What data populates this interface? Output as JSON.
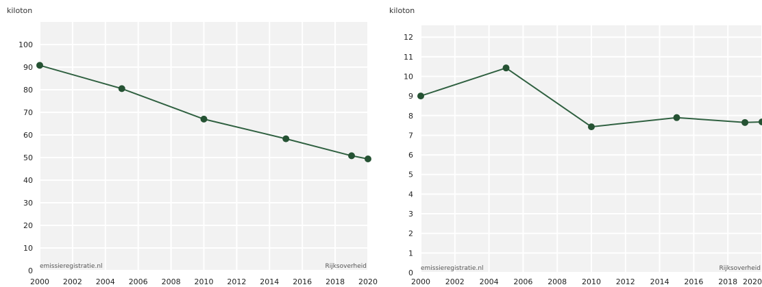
{
  "colors": {
    "plot_bg": "#f2f2f2",
    "grid": "#ffffff",
    "line": "#2f6040",
    "marker": "#255233"
  },
  "chart_data": [
    {
      "type": "line",
      "unit_label": "kiloton",
      "x": [
        2000,
        2005,
        2010,
        2015,
        2019,
        2020
      ],
      "series": [
        {
          "values": [
            90.8,
            80.5,
            67.0,
            58.3,
            50.8,
            49.4
          ]
        }
      ],
      "xlim": [
        2000,
        2020
      ],
      "ylim": [
        0,
        110
      ],
      "xticks": [
        2000,
        2002,
        2004,
        2006,
        2008,
        2010,
        2012,
        2014,
        2016,
        2018,
        2020
      ],
      "yticks": [
        0,
        10,
        20,
        30,
        40,
        50,
        60,
        70,
        80,
        90,
        100
      ],
      "grid": true,
      "source_left": "emissieregistratie.nl",
      "source_right": "Rijksoverheid"
    },
    {
      "type": "line",
      "unit_label": "kiloton",
      "x": [
        2000,
        2005,
        2010,
        2015,
        2019,
        2020
      ],
      "series": [
        {
          "values": [
            9.0,
            10.43,
            7.43,
            7.9,
            7.65,
            7.68
          ]
        }
      ],
      "xlim": [
        2000,
        2020
      ],
      "ylim": [
        0,
        12.6
      ],
      "xticks": [
        2000,
        2002,
        2004,
        2006,
        2008,
        2010,
        2012,
        2014,
        2016,
        2018,
        2020
      ],
      "yticks": [
        0,
        1,
        2,
        3,
        4,
        5,
        6,
        7,
        8,
        9,
        10,
        11,
        12
      ],
      "grid": true,
      "source_left": "emissieregistratie.nl",
      "source_right": "Rijksoverheid"
    }
  ]
}
